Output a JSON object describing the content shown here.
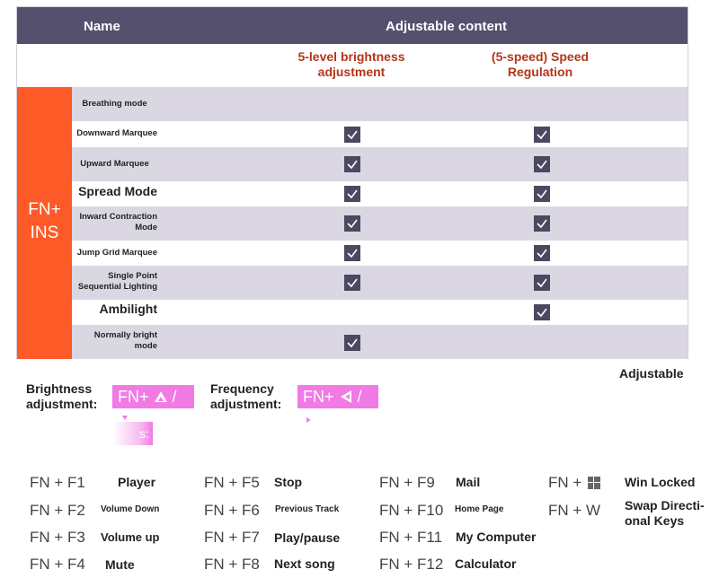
{
  "table": {
    "header": {
      "name": "Name",
      "adjustable": "Adjustable content"
    },
    "subheader": {
      "col1": "5-level brightness adjustment",
      "col2": "(5-speed) Speed Regulation"
    },
    "fn_label": "FN+ INS",
    "rows": [
      {
        "label": "Breathing mode",
        "brightness": false,
        "speed": false
      },
      {
        "label": "Downward Marquee",
        "brightness": true,
        "speed": true
      },
      {
        "label": "Upward Marquee",
        "brightness": true,
        "speed": true
      },
      {
        "label": "Spread Mode",
        "brightness": true,
        "speed": true
      },
      {
        "label": "Inward Contraction Mode",
        "brightness": true,
        "speed": true
      },
      {
        "label": "Jump Grid Marquee",
        "brightness": true,
        "speed": true
      },
      {
        "label": "Single Point Sequential Lighting",
        "brightness": true,
        "speed": true
      },
      {
        "label": "Ambilight",
        "brightness": false,
        "speed": true
      },
      {
        "label": "Normally bright mode",
        "brightness": true,
        "speed": false
      }
    ]
  },
  "adjust": {
    "adjustable_note": "Adjustable",
    "brightness_label": "Brightness adjustment:",
    "brightness_keys": "FN+",
    "brightness_slash": "/",
    "frequency_label": "Frequency adjustment:",
    "frequency_keys": "FN+",
    "frequency_slash": "/",
    "ghost_text": "s:"
  },
  "shortcuts": [
    {
      "key": "FN + F1",
      "action": "Player"
    },
    {
      "key": "FN + F2",
      "action": "Volume Down"
    },
    {
      "key": "FN + F3",
      "action": "Volume up"
    },
    {
      "key": "FN + F4",
      "action": "Mute"
    },
    {
      "key": "FN + F5",
      "action": "Stop"
    },
    {
      "key": "FN + F6",
      "action": "Previous Track"
    },
    {
      "key": "FN + F7",
      "action": "Play/pause"
    },
    {
      "key": "FN + F8",
      "action": "Next song"
    },
    {
      "key": "FN + F9",
      "action": "Mail"
    },
    {
      "key": "FN + F10",
      "action": "Home Page"
    },
    {
      "key": "FN + F11",
      "action": "My Computer"
    },
    {
      "key": "FN + F12",
      "action": "Calculator"
    },
    {
      "key": "FN +",
      "icon": "windows-icon",
      "action": "Win Locked"
    },
    {
      "key": "FN +  W",
      "action": "Swap Directional Keys"
    }
  ]
}
